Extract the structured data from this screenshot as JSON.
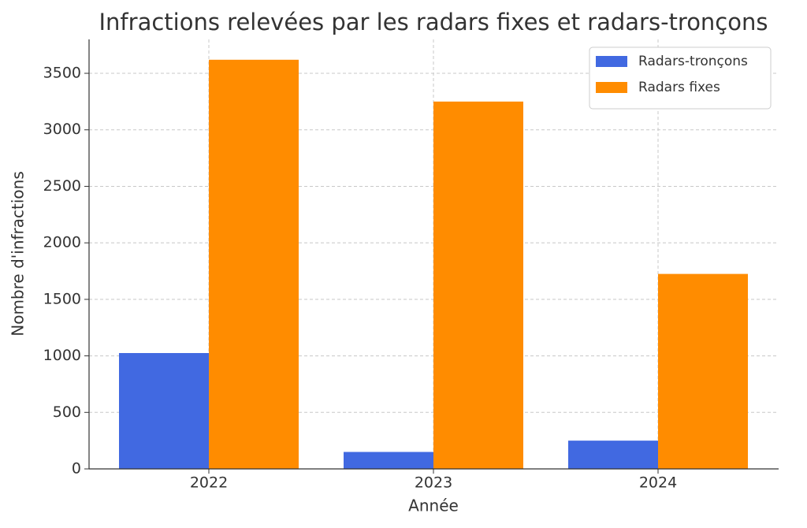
{
  "chart_data": {
    "type": "bar",
    "title": "Infractions relevées par les radars fixes et radars-tronçons",
    "x_label": "Année",
    "y_label": "Nombre d'infractions",
    "categories": [
      "2022",
      "2023",
      "2024"
    ],
    "series": [
      {
        "name": "Radars-tronçons",
        "color": "#4169e1",
        "values": [
          1025,
          150,
          250
        ]
      },
      {
        "name": "Radars fixes",
        "color": "#ff8c00",
        "values": [
          3620,
          3250,
          1725
        ]
      }
    ],
    "ylim": [
      0,
      3800
    ],
    "yticks": [
      0,
      500,
      1000,
      1500,
      2000,
      2500,
      3000,
      3500
    ],
    "grid": true,
    "legend": "upper right"
  }
}
